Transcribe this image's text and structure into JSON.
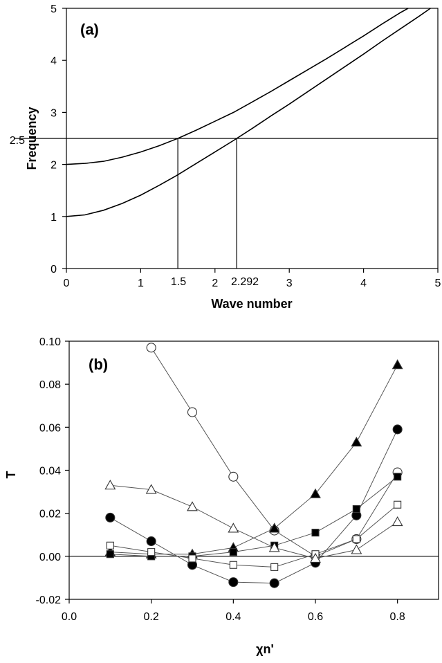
{
  "chart_data": [
    {
      "type": "line",
      "panel_label": "(a)",
      "xlabel": "Wave number",
      "ylabel": "Frequency",
      "xlim": [
        0,
        5
      ],
      "ylim": [
        0,
        5
      ],
      "x_ticks": [
        "0",
        "1",
        "2",
        "3",
        "4",
        "5"
      ],
      "y_ticks": [
        "0",
        "1",
        "2",
        "3",
        "4",
        "5"
      ],
      "annotations": {
        "y_marker": "2.5",
        "x_markers": [
          "1.5",
          "2.292"
        ]
      },
      "reference_lines": {
        "horizontal_y": 2.5,
        "vertical_x": [
          1.5,
          2.292
        ]
      },
      "series": [
        {
          "x": [
            0,
            0.25,
            0.5,
            0.75,
            1,
            1.25,
            1.5,
            1.75,
            2,
            2.25,
            2.5,
            2.75,
            3,
            3.25,
            3.5,
            3.75,
            4,
            4.25,
            4.5,
            4.6
          ],
          "values": [
            2.0,
            2.02,
            2.06,
            2.14,
            2.24,
            2.36,
            2.5,
            2.66,
            2.83,
            3.0,
            3.2,
            3.4,
            3.61,
            3.82,
            4.03,
            4.25,
            4.47,
            4.7,
            4.92,
            5.0
          ]
        },
        {
          "x": [
            0,
            0.25,
            0.5,
            0.75,
            1,
            1.25,
            1.5,
            1.75,
            2,
            2.25,
            2.5,
            2.75,
            3,
            3.25,
            3.5,
            3.75,
            4,
            4.25,
            4.5,
            4.75,
            4.9
          ],
          "values": [
            1.0,
            1.03,
            1.12,
            1.25,
            1.41,
            1.6,
            1.8,
            2.02,
            2.24,
            2.46,
            2.69,
            2.93,
            3.16,
            3.4,
            3.64,
            3.88,
            4.12,
            4.37,
            4.61,
            4.85,
            5.0
          ]
        }
      ]
    },
    {
      "type": "line",
      "panel_label": "(b)",
      "xlabel": "χn'",
      "ylabel": "T",
      "xlim": [
        0.0,
        0.9
      ],
      "ylim": [
        -0.02,
        0.1
      ],
      "x_ticks": [
        "0.0",
        "0.2",
        "0.4",
        "0.6",
        "0.8"
      ],
      "y_ticks": [
        "-0.02",
        "0.00",
        "0.02",
        "0.04",
        "0.06",
        "0.08",
        "0.10"
      ],
      "x": [
        0.1,
        0.2,
        0.3,
        0.4,
        0.5,
        0.6,
        0.7,
        0.8
      ],
      "series": [
        {
          "marker": "open-circle",
          "points": [
            [
              0.2,
              0.097
            ],
            [
              0.3,
              0.067
            ],
            [
              0.4,
              0.037
            ],
            [
              0.5,
              0.012
            ],
            [
              0.6,
              0.0
            ],
            [
              0.7,
              0.008
            ],
            [
              0.8,
              0.039
            ]
          ]
        },
        {
          "marker": "filled-triangle",
          "points": [
            [
              0.1,
              0.002
            ],
            [
              0.2,
              0.001
            ],
            [
              0.3,
              0.001
            ],
            [
              0.4,
              0.004
            ],
            [
              0.5,
              0.013
            ],
            [
              0.6,
              0.029
            ],
            [
              0.7,
              0.053
            ],
            [
              0.8,
              0.089
            ]
          ]
        },
        {
          "marker": "filled-circle",
          "points": [
            [
              0.1,
              0.018
            ],
            [
              0.2,
              0.007
            ],
            [
              0.3,
              -0.004
            ],
            [
              0.4,
              -0.012
            ],
            [
              0.5,
              -0.0125
            ],
            [
              0.6,
              -0.003
            ],
            [
              0.7,
              0.019
            ],
            [
              0.8,
              0.059
            ]
          ]
        },
        {
          "marker": "filled-square",
          "points": [
            [
              0.1,
              0.001
            ],
            [
              0.2,
              0.0
            ],
            [
              0.3,
              0.0
            ],
            [
              0.4,
              0.002
            ],
            [
              0.5,
              0.005
            ],
            [
              0.6,
              0.011
            ],
            [
              0.7,
              0.022
            ],
            [
              0.8,
              0.037
            ]
          ]
        },
        {
          "marker": "open-square",
          "points": [
            [
              0.1,
              0.005
            ],
            [
              0.2,
              0.002
            ],
            [
              0.3,
              -0.001
            ],
            [
              0.4,
              -0.004
            ],
            [
              0.5,
              -0.005
            ],
            [
              0.6,
              0.001
            ],
            [
              0.7,
              0.008
            ],
            [
              0.8,
              0.024
            ]
          ]
        },
        {
          "marker": "open-triangle",
          "points": [
            [
              0.1,
              0.033
            ],
            [
              0.2,
              0.031
            ],
            [
              0.3,
              0.023
            ],
            [
              0.4,
              0.013
            ],
            [
              0.5,
              0.004
            ],
            [
              0.6,
              -0.001
            ],
            [
              0.7,
              0.003
            ],
            [
              0.8,
              0.016
            ]
          ]
        }
      ]
    }
  ]
}
